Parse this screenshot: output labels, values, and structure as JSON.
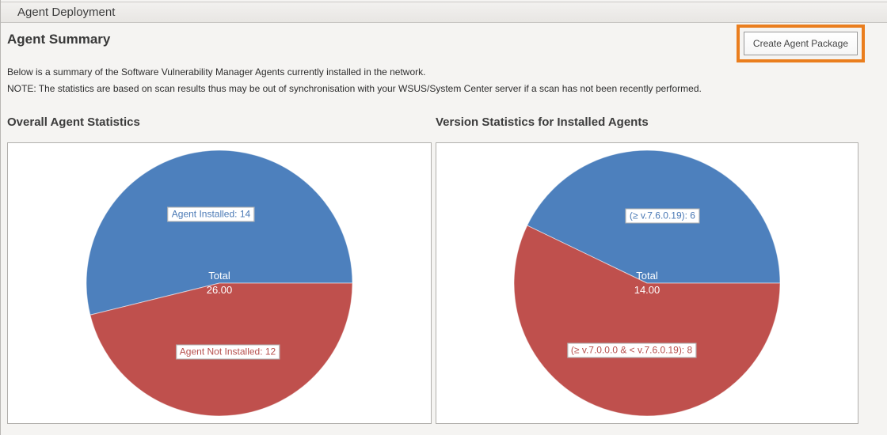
{
  "header": {
    "title": "Agent Deployment"
  },
  "summary": {
    "title": "Agent Summary",
    "create_button_label": "Create Agent Package",
    "description": "Below is a summary of the Software Vulnerability Manager Agents currently installed in the network.",
    "note": "NOTE: The statistics are based on scan results thus may be out of synchronisation with your WSUS/System Center server if a scan has not been recently performed."
  },
  "colors": {
    "slice_blue": "#4D80BD",
    "slice_red": "#BF504D",
    "highlight_orange": "#EA7E1E"
  },
  "chart_data": [
    {
      "type": "pie",
      "title": "Overall Agent Statistics",
      "total_label": "Total",
      "total_value": "26.00",
      "start_angle_deg": 0,
      "direction": "ccw",
      "slices": [
        {
          "label": "Agent Installed",
          "value": 14,
          "color": "#4D80BD",
          "text_color": "#4a79b5"
        },
        {
          "label": "Agent Not Installed",
          "value": 12,
          "color": "#BF504D",
          "text_color": "#b64f4c"
        }
      ]
    },
    {
      "type": "pie",
      "title": "Version Statistics for Installed Agents",
      "total_label": "Total",
      "total_value": "14.00",
      "start_angle_deg": 0,
      "direction": "ccw",
      "slices": [
        {
          "label": "(≥ v.7.6.0.19)",
          "value": 6,
          "color": "#4D80BD",
          "text_color": "#4a79b5"
        },
        {
          "label": "(≥ v.7.0.0.0 & < v.7.6.0.19)",
          "value": 8,
          "color": "#BF504D",
          "text_color": "#b64f4c"
        }
      ]
    }
  ]
}
